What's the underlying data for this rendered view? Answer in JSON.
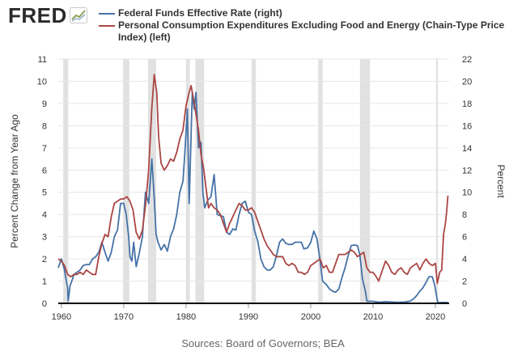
{
  "brand": {
    "logo_text": "FRED",
    "logo_icon": "fred-chart-icon"
  },
  "source": "Sources: Board of Governors; BEA",
  "chart_data": {
    "type": "line",
    "title": "",
    "xlabel": "",
    "ylabel_left": "Percent Change from Year Ago",
    "ylabel_right": "Percent",
    "xlim": [
      1959.5,
      2022.2
    ],
    "ylim_left": [
      0,
      11
    ],
    "ylim_right": [
      0,
      22
    ],
    "x_ticks": [
      1960,
      1970,
      1980,
      1990,
      2000,
      2010,
      2020
    ],
    "y_ticks_left": [
      0,
      1,
      2,
      3,
      4,
      5,
      6,
      7,
      8,
      9,
      10,
      11
    ],
    "y_ticks_right": [
      0,
      2,
      4,
      6,
      8,
      10,
      12,
      14,
      16,
      18,
      20,
      22
    ],
    "grid": "horizontal",
    "recessions": [
      [
        1960.3,
        1961.1
      ],
      [
        1969.9,
        1970.9
      ],
      [
        1973.9,
        1975.2
      ],
      [
        1980.0,
        1980.6
      ],
      [
        1981.5,
        1982.9
      ],
      [
        1990.5,
        1991.2
      ],
      [
        2001.2,
        2001.9
      ],
      [
        2007.9,
        2009.5
      ],
      [
        2020.1,
        2020.4
      ]
    ],
    "series": [
      {
        "name": "Federal Funds Effective Rate (right)",
        "axis": "right",
        "color": "#4572a7",
        "points": [
          [
            1959.5,
            3.2
          ],
          [
            1960.0,
            4.0
          ],
          [
            1960.5,
            3.0
          ],
          [
            1960.8,
            2.0
          ],
          [
            1961.0,
            1.4
          ],
          [
            1961.1,
            0.2
          ],
          [
            1961.4,
            1.6
          ],
          [
            1961.8,
            2.2
          ],
          [
            1962.0,
            2.6
          ],
          [
            1962.5,
            2.8
          ],
          [
            1963.0,
            3.0
          ],
          [
            1963.5,
            3.4
          ],
          [
            1964.0,
            3.5
          ],
          [
            1964.5,
            3.5
          ],
          [
            1965.0,
            4.0
          ],
          [
            1965.5,
            4.2
          ],
          [
            1966.0,
            4.6
          ],
          [
            1966.5,
            5.5
          ],
          [
            1967.0,
            4.6
          ],
          [
            1967.5,
            3.8
          ],
          [
            1968.0,
            4.6
          ],
          [
            1968.5,
            6.0
          ],
          [
            1969.0,
            6.6
          ],
          [
            1969.5,
            9.0
          ],
          [
            1970.0,
            9.0
          ],
          [
            1970.4,
            8.0
          ],
          [
            1970.8,
            6.0
          ],
          [
            1971.0,
            4.2
          ],
          [
            1971.3,
            3.8
          ],
          [
            1971.6,
            5.5
          ],
          [
            1972.0,
            3.3
          ],
          [
            1972.5,
            4.5
          ],
          [
            1973.0,
            6.0
          ],
          [
            1973.5,
            10.0
          ],
          [
            1974.0,
            9.0
          ],
          [
            1974.5,
            13.0
          ],
          [
            1974.9,
            9.5
          ],
          [
            1975.2,
            6.2
          ],
          [
            1975.5,
            5.5
          ],
          [
            1976.0,
            4.8
          ],
          [
            1976.5,
            5.3
          ],
          [
            1977.0,
            4.7
          ],
          [
            1977.5,
            6.0
          ],
          [
            1978.0,
            6.7
          ],
          [
            1978.5,
            8.0
          ],
          [
            1979.0,
            10.0
          ],
          [
            1979.5,
            11.0
          ],
          [
            1979.8,
            13.5
          ],
          [
            1980.2,
            17.5
          ],
          [
            1980.5,
            9.0
          ],
          [
            1980.8,
            15.0
          ],
          [
            1981.0,
            19.0
          ],
          [
            1981.3,
            17.5
          ],
          [
            1981.6,
            19.0
          ],
          [
            1982.0,
            14.0
          ],
          [
            1982.4,
            14.5
          ],
          [
            1982.7,
            10.0
          ],
          [
            1983.0,
            8.6
          ],
          [
            1983.5,
            9.3
          ],
          [
            1984.0,
            9.6
          ],
          [
            1984.5,
            11.6
          ],
          [
            1985.0,
            8.0
          ],
          [
            1985.5,
            7.9
          ],
          [
            1986.0,
            7.8
          ],
          [
            1986.5,
            6.4
          ],
          [
            1987.0,
            6.2
          ],
          [
            1987.5,
            6.7
          ],
          [
            1988.0,
            6.6
          ],
          [
            1988.5,
            8.0
          ],
          [
            1989.0,
            9.0
          ],
          [
            1989.5,
            9.2
          ],
          [
            1990.0,
            8.2
          ],
          [
            1990.5,
            8.0
          ],
          [
            1991.0,
            6.5
          ],
          [
            1991.5,
            5.6
          ],
          [
            1992.0,
            4.0
          ],
          [
            1992.5,
            3.3
          ],
          [
            1993.0,
            3.0
          ],
          [
            1993.5,
            3.0
          ],
          [
            1994.0,
            3.3
          ],
          [
            1994.5,
            4.3
          ],
          [
            1995.0,
            5.5
          ],
          [
            1995.5,
            5.8
          ],
          [
            1996.0,
            5.4
          ],
          [
            1996.5,
            5.3
          ],
          [
            1997.0,
            5.3
          ],
          [
            1997.5,
            5.5
          ],
          [
            1998.0,
            5.5
          ],
          [
            1998.5,
            5.5
          ],
          [
            1998.9,
            4.9
          ],
          [
            1999.5,
            5.0
          ],
          [
            2000.0,
            5.5
          ],
          [
            2000.5,
            6.5
          ],
          [
            2001.0,
            5.8
          ],
          [
            2001.5,
            3.9
          ],
          [
            2001.9,
            2.0
          ],
          [
            2002.5,
            1.7
          ],
          [
            2003.0,
            1.3
          ],
          [
            2003.5,
            1.1
          ],
          [
            2004.0,
            1.0
          ],
          [
            2004.5,
            1.3
          ],
          [
            2005.0,
            2.3
          ],
          [
            2005.5,
            3.2
          ],
          [
            2006.0,
            4.3
          ],
          [
            2006.5,
            5.2
          ],
          [
            2007.0,
            5.25
          ],
          [
            2007.5,
            5.2
          ],
          [
            2007.9,
            4.3
          ],
          [
            2008.3,
            2.2
          ],
          [
            2008.8,
            1.0
          ],
          [
            2009.0,
            0.2
          ],
          [
            2010.0,
            0.18
          ],
          [
            2011.0,
            0.1
          ],
          [
            2012.0,
            0.15
          ],
          [
            2013.0,
            0.12
          ],
          [
            2014.0,
            0.09
          ],
          [
            2015.0,
            0.12
          ],
          [
            2015.9,
            0.2
          ],
          [
            2016.5,
            0.4
          ],
          [
            2017.0,
            0.7
          ],
          [
            2017.5,
            1.1
          ],
          [
            2018.0,
            1.4
          ],
          [
            2018.5,
            1.9
          ],
          [
            2019.0,
            2.4
          ],
          [
            2019.5,
            2.4
          ],
          [
            2019.9,
            1.6
          ],
          [
            2020.2,
            0.6
          ],
          [
            2020.4,
            0.05
          ],
          [
            2021.0,
            0.08
          ],
          [
            2022.0,
            0.08
          ]
        ]
      },
      {
        "name": "Personal Consumption Expenditures Excluding Food and Energy (Chain-Type Price Index) (left)",
        "axis": "left",
        "color": "#aa4643",
        "points": [
          [
            1959.5,
            2.0
          ],
          [
            1960.0,
            1.9
          ],
          [
            1960.5,
            1.7
          ],
          [
            1961.0,
            1.3
          ],
          [
            1961.5,
            1.2
          ],
          [
            1962.0,
            1.3
          ],
          [
            1962.5,
            1.3
          ],
          [
            1963.0,
            1.4
          ],
          [
            1963.5,
            1.3
          ],
          [
            1964.0,
            1.5
          ],
          [
            1964.5,
            1.4
          ],
          [
            1965.0,
            1.3
          ],
          [
            1965.5,
            1.3
          ],
          [
            1966.0,
            2.1
          ],
          [
            1966.5,
            2.7
          ],
          [
            1967.0,
            3.1
          ],
          [
            1967.5,
            3.0
          ],
          [
            1968.0,
            3.9
          ],
          [
            1968.5,
            4.5
          ],
          [
            1969.0,
            4.6
          ],
          [
            1969.5,
            4.7
          ],
          [
            1970.0,
            4.7
          ],
          [
            1970.5,
            4.8
          ],
          [
            1971.0,
            4.6
          ],
          [
            1971.5,
            4.2
          ],
          [
            1972.0,
            3.2
          ],
          [
            1972.5,
            2.9
          ],
          [
            1973.0,
            3.3
          ],
          [
            1973.5,
            4.4
          ],
          [
            1974.0,
            6.0
          ],
          [
            1974.5,
            8.8
          ],
          [
            1974.9,
            10.3
          ],
          [
            1975.3,
            9.5
          ],
          [
            1975.6,
            7.5
          ],
          [
            1976.0,
            6.3
          ],
          [
            1976.5,
            6.0
          ],
          [
            1977.0,
            6.2
          ],
          [
            1977.5,
            6.5
          ],
          [
            1978.0,
            6.4
          ],
          [
            1978.5,
            6.8
          ],
          [
            1979.0,
            7.4
          ],
          [
            1979.5,
            7.8
          ],
          [
            1980.0,
            8.9
          ],
          [
            1980.5,
            9.5
          ],
          [
            1980.8,
            9.8
          ],
          [
            1981.2,
            9.2
          ],
          [
            1981.6,
            8.5
          ],
          [
            1982.0,
            7.8
          ],
          [
            1982.4,
            6.7
          ],
          [
            1982.8,
            6.1
          ],
          [
            1983.2,
            5.2
          ],
          [
            1983.6,
            4.3
          ],
          [
            1984.0,
            4.5
          ],
          [
            1984.5,
            4.3
          ],
          [
            1985.0,
            4.2
          ],
          [
            1985.5,
            4.0
          ],
          [
            1986.0,
            3.6
          ],
          [
            1986.5,
            3.2
          ],
          [
            1987.0,
            3.6
          ],
          [
            1987.5,
            3.9
          ],
          [
            1988.0,
            4.2
          ],
          [
            1988.5,
            4.5
          ],
          [
            1989.0,
            4.4
          ],
          [
            1989.5,
            4.2
          ],
          [
            1990.0,
            4.2
          ],
          [
            1990.5,
            4.3
          ],
          [
            1991.0,
            4.1
          ],
          [
            1991.5,
            3.7
          ],
          [
            1992.0,
            3.3
          ],
          [
            1992.5,
            2.9
          ],
          [
            1993.0,
            2.6
          ],
          [
            1993.5,
            2.4
          ],
          [
            1994.0,
            2.2
          ],
          [
            1994.5,
            2.1
          ],
          [
            1995.0,
            2.1
          ],
          [
            1995.5,
            2.1
          ],
          [
            1996.0,
            1.8
          ],
          [
            1996.5,
            1.7
          ],
          [
            1997.0,
            1.8
          ],
          [
            1997.5,
            1.7
          ],
          [
            1998.0,
            1.4
          ],
          [
            1998.5,
            1.4
          ],
          [
            1999.0,
            1.3
          ],
          [
            1999.5,
            1.4
          ],
          [
            2000.0,
            1.7
          ],
          [
            2000.5,
            1.8
          ],
          [
            2001.0,
            1.9
          ],
          [
            2001.5,
            2.0
          ],
          [
            2002.0,
            1.6
          ],
          [
            2002.5,
            1.7
          ],
          [
            2003.0,
            1.4
          ],
          [
            2003.5,
            1.4
          ],
          [
            2004.0,
            1.8
          ],
          [
            2004.5,
            2.2
          ],
          [
            2005.0,
            2.2
          ],
          [
            2005.5,
            2.2
          ],
          [
            2006.0,
            2.3
          ],
          [
            2006.5,
            2.4
          ],
          [
            2007.0,
            2.3
          ],
          [
            2007.5,
            2.1
          ],
          [
            2008.0,
            2.2
          ],
          [
            2008.5,
            2.3
          ],
          [
            2009.0,
            1.6
          ],
          [
            2009.5,
            1.4
          ],
          [
            2010.0,
            1.4
          ],
          [
            2010.5,
            1.2
          ],
          [
            2010.9,
            1.0
          ],
          [
            2011.5,
            1.5
          ],
          [
            2012.0,
            1.9
          ],
          [
            2012.5,
            1.7
          ],
          [
            2013.0,
            1.4
          ],
          [
            2013.5,
            1.3
          ],
          [
            2014.0,
            1.5
          ],
          [
            2014.5,
            1.6
          ],
          [
            2015.0,
            1.4
          ],
          [
            2015.5,
            1.3
          ],
          [
            2016.0,
            1.6
          ],
          [
            2016.5,
            1.7
          ],
          [
            2017.0,
            1.8
          ],
          [
            2017.5,
            1.5
          ],
          [
            2018.0,
            1.8
          ],
          [
            2018.5,
            2.0
          ],
          [
            2019.0,
            1.8
          ],
          [
            2019.5,
            1.7
          ],
          [
            2020.0,
            1.8
          ],
          [
            2020.3,
            0.9
          ],
          [
            2020.7,
            1.4
          ],
          [
            2021.0,
            1.5
          ],
          [
            2021.3,
            3.1
          ],
          [
            2021.6,
            3.6
          ],
          [
            2021.8,
            4.1
          ],
          [
            2022.0,
            4.85
          ]
        ]
      }
    ]
  }
}
